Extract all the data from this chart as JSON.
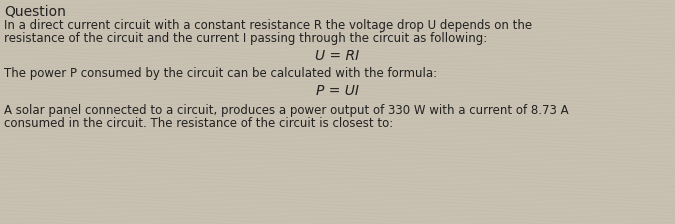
{
  "background_color": "#c8c0b0",
  "text_color": "#222222",
  "formula_color": "#222222",
  "header": "Question",
  "line1": "In a direct current circuit with a constant resistance R the voltage drop U depends on the",
  "line2": "resistance of the circuit and the current I passing through the circuit as following:",
  "formula1": "U = RI",
  "line3": "The power P consumed by the circuit can be calculated with the formula:",
  "formula2": "P = UI",
  "line4": "A solar panel connected to a circuit, produces a power output of 330 W with a current of 8.73 A",
  "line5": "consumed in the circuit. The resistance of the circuit is closest to:",
  "font_size_body": 8.5,
  "font_size_formula": 10.0,
  "font_size_header": 10.0,
  "figsize": [
    6.75,
    2.24
  ],
  "dpi": 100
}
